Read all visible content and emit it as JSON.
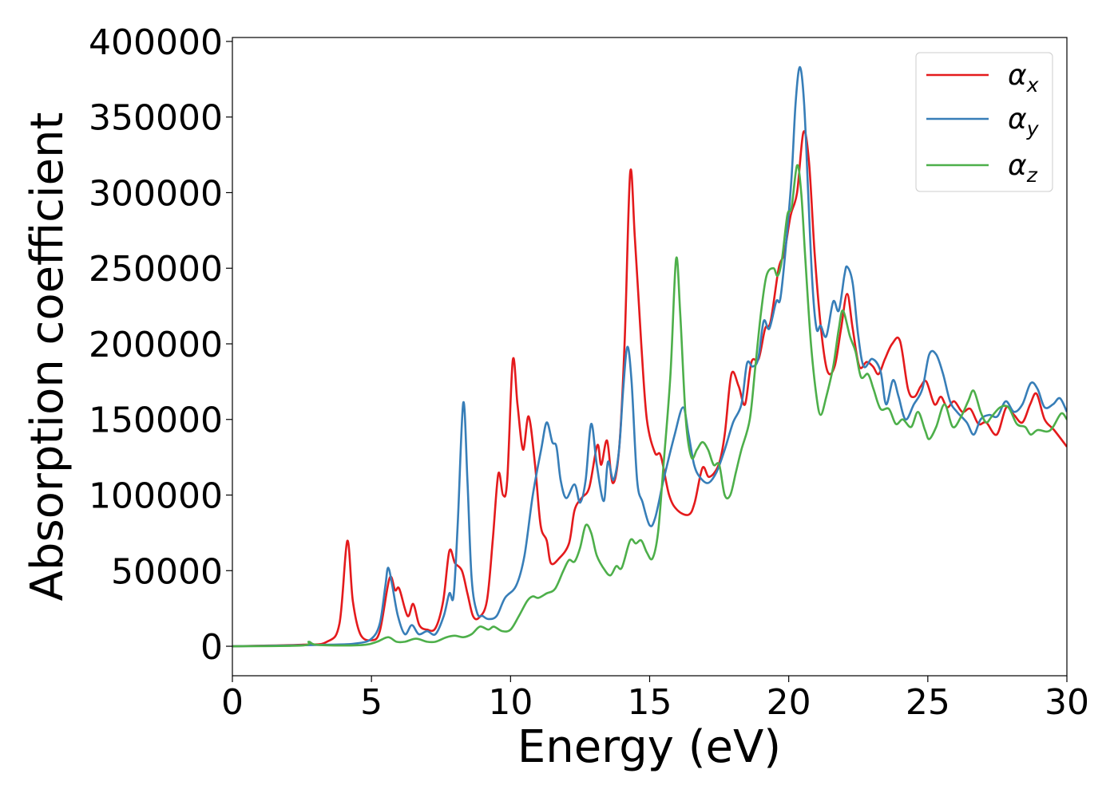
{
  "chart_data": {
    "type": "line",
    "title": "",
    "xlabel": "Energy (eV)",
    "ylabel": "Absorption coefficient",
    "xlim": [
      0,
      30
    ],
    "ylim": [
      -19500,
      402600
    ],
    "xticks": [
      0,
      5,
      10,
      15,
      20,
      25,
      30
    ],
    "xtick_labels": [
      "0",
      "5",
      "10",
      "15",
      "20",
      "25",
      "30"
    ],
    "yticks": [
      0,
      50000,
      100000,
      150000,
      200000,
      250000,
      300000,
      350000,
      400000
    ],
    "ytick_labels": [
      "0",
      "50000",
      "100000",
      "150000",
      "200000",
      "250000",
      "300000",
      "350000",
      "400000"
    ],
    "grid": false,
    "legend_position": "top-right",
    "series": [
      {
        "name": "αx",
        "base": "α",
        "sub": "x",
        "color": "#e41a1c",
        "x": [
          0,
          2.55,
          3.4,
          3.85,
          4.13,
          4.33,
          4.6,
          5.0,
          5.3,
          5.65,
          5.85,
          6.0,
          6.3,
          6.5,
          6.72,
          7.0,
          7.3,
          7.58,
          7.8,
          8.0,
          8.25,
          8.45,
          8.65,
          8.87,
          9.15,
          9.36,
          9.56,
          9.73,
          9.88,
          10.08,
          10.25,
          10.45,
          10.65,
          10.88,
          11.08,
          11.3,
          11.45,
          11.74,
          12.1,
          12.3,
          12.55,
          12.83,
          13.12,
          13.26,
          13.47,
          13.67,
          13.9,
          14.1,
          14.3,
          14.47,
          14.7,
          14.9,
          15.19,
          15.4,
          15.7,
          16.0,
          16.4,
          16.62,
          16.9,
          17.14,
          17.48,
          17.7,
          17.94,
          18.2,
          18.43,
          18.66,
          18.92,
          19.15,
          19.35,
          19.64,
          19.84,
          20.07,
          20.3,
          20.53,
          20.73,
          20.93,
          21.16,
          21.39,
          21.65,
          21.88,
          22.1,
          22.3,
          22.54,
          22.8,
          23.03,
          23.23,
          23.46,
          23.72,
          24.0,
          24.29,
          24.52,
          24.75,
          24.95,
          25.24,
          25.47,
          25.7,
          25.95,
          26.24,
          26.53,
          26.82,
          27.1,
          27.48,
          27.82,
          28.1,
          28.4,
          28.68,
          28.91,
          29.2,
          29.54,
          30
        ],
        "y": [
          0,
          1000,
          3000,
          15000,
          69700,
          30000,
          8000,
          4000,
          10000,
          45000,
          37000,
          38000,
          20000,
          28000,
          14000,
          11000,
          12000,
          30000,
          63000,
          55000,
          50000,
          35000,
          20000,
          19000,
          30000,
          70000,
          114000,
          100000,
          110000,
          189000,
          160000,
          130000,
          152000,
          120000,
          80000,
          70000,
          55000,
          58000,
          68000,
          90000,
          98000,
          105000,
          133000,
          120000,
          136000,
          108000,
          130000,
          200000,
          313000,
          270000,
          200000,
          150000,
          128000,
          126000,
          100000,
          90000,
          87000,
          95000,
          118000,
          112000,
          120000,
          140000,
          180000,
          172000,
          160000,
          188000,
          190000,
          210000,
          215000,
          250000,
          260000,
          285000,
          300000,
          340000,
          320000,
          260000,
          210000,
          182000,
          185000,
          210000,
          233000,
          210000,
          185000,
          188000,
          185000,
          180000,
          190000,
          200000,
          202000,
          170000,
          165000,
          172000,
          175000,
          160000,
          165000,
          158000,
          162000,
          155000,
          157000,
          147000,
          148000,
          140000,
          158000,
          153000,
          148000,
          160000,
          167000,
          150000,
          143000,
          132000
        ]
      },
      {
        "name": "αy",
        "base": "α",
        "sub": "y",
        "color": "#377eb8",
        "x": [
          0,
          3.5,
          4.5,
          5.0,
          5.3,
          5.5,
          5.6,
          5.75,
          5.95,
          6.2,
          6.45,
          6.7,
          7.0,
          7.3,
          7.6,
          7.8,
          7.95,
          8.1,
          8.3,
          8.45,
          8.6,
          8.8,
          9.0,
          9.2,
          9.5,
          9.8,
          10.2,
          10.5,
          10.8,
          11.1,
          11.3,
          11.5,
          11.65,
          11.8,
          12.0,
          12.3,
          12.5,
          12.7,
          12.9,
          13.1,
          13.35,
          13.5,
          13.7,
          13.9,
          14.05,
          14.2,
          14.35,
          14.55,
          14.75,
          15.0,
          15.2,
          15.5,
          15.9,
          16.2,
          16.4,
          16.6,
          16.8,
          17.1,
          17.4,
          17.7,
          18.0,
          18.3,
          18.5,
          18.7,
          18.9,
          19.1,
          19.3,
          19.55,
          19.7,
          19.9,
          20.1,
          20.25,
          20.4,
          20.55,
          20.7,
          20.85,
          21.0,
          21.15,
          21.35,
          21.6,
          21.8,
          22.0,
          22.1,
          22.3,
          22.5,
          22.7,
          23.0,
          23.3,
          23.5,
          23.75,
          23.95,
          24.2,
          24.5,
          24.8,
          25.05,
          25.3,
          25.55,
          25.8,
          26.05,
          26.4,
          26.65,
          26.9,
          27.2,
          27.5,
          27.8,
          28.1,
          28.4,
          28.7,
          28.95,
          29.2,
          29.5,
          29.75,
          30
        ],
        "y": [
          0,
          1000,
          2000,
          5000,
          15000,
          40000,
          52000,
          40000,
          20000,
          8000,
          14000,
          8000,
          10000,
          8000,
          20000,
          35000,
          33000,
          80000,
          161000,
          110000,
          45000,
          22000,
          20000,
          18000,
          20000,
          32000,
          40000,
          60000,
          100000,
          130000,
          148000,
          135000,
          132000,
          110000,
          98000,
          107000,
          95000,
          110000,
          147000,
          120000,
          96000,
          122000,
          110000,
          130000,
          170000,
          198000,
          175000,
          110000,
          95000,
          80000,
          85000,
          110000,
          140000,
          158000,
          140000,
          120000,
          112000,
          108000,
          115000,
          130000,
          148000,
          160000,
          187000,
          185000,
          190000,
          215000,
          210000,
          228000,
          230000,
          265000,
          310000,
          360000,
          383000,
          360000,
          300000,
          240000,
          210000,
          212000,
          205000,
          228000,
          222000,
          245000,
          251000,
          240000,
          205000,
          185000,
          190000,
          182000,
          160000,
          176000,
          165000,
          150000,
          160000,
          170000,
          193000,
          193000,
          180000,
          162000,
          155000,
          148000,
          140000,
          150000,
          153000,
          152000,
          162000,
          155000,
          160000,
          174000,
          170000,
          158000,
          160000,
          164000,
          155000
        ]
      },
      {
        "name": "αz",
        "base": "α",
        "sub": "z",
        "color": "#4daf4a",
        "x": [
          0,
          2.5,
          2.75,
          3.0,
          4.0,
          4.8,
          5.2,
          5.6,
          5.9,
          6.2,
          6.6,
          7.0,
          7.3,
          7.7,
          8.0,
          8.3,
          8.6,
          8.9,
          9.2,
          9.4,
          9.7,
          10.0,
          10.3,
          10.6,
          10.8,
          11.0,
          11.3,
          11.6,
          11.9,
          12.1,
          12.3,
          12.5,
          12.7,
          12.9,
          13.1,
          13.4,
          13.6,
          13.8,
          14.0,
          14.3,
          14.5,
          14.7,
          14.9,
          15.1,
          15.3,
          15.5,
          15.75,
          15.95,
          16.1,
          16.3,
          16.5,
          16.7,
          16.9,
          17.1,
          17.3,
          17.5,
          17.7,
          17.9,
          18.1,
          18.3,
          18.6,
          18.8,
          19.0,
          19.2,
          19.45,
          19.6,
          19.75,
          19.95,
          20.1,
          20.3,
          20.45,
          20.6,
          20.8,
          21.0,
          21.15,
          21.35,
          21.6,
          21.8,
          21.95,
          22.2,
          22.4,
          22.6,
          22.85,
          23.05,
          23.3,
          23.6,
          23.85,
          24.1,
          24.4,
          24.65,
          24.9,
          25.05,
          25.3,
          25.6,
          25.9,
          26.2,
          26.45,
          26.65,
          26.9,
          27.1,
          27.3,
          27.6,
          27.9,
          28.2,
          28.5,
          28.7,
          28.95,
          29.3,
          29.5,
          29.8,
          30
        ],
        "y": [
          0,
          500,
          3000,
          1000,
          500,
          1000,
          3000,
          6000,
          3000,
          3000,
          5000,
          3000,
          3000,
          6000,
          7000,
          6000,
          8000,
          13000,
          11000,
          13000,
          10000,
          11000,
          20000,
          30000,
          33000,
          32000,
          35000,
          38000,
          50000,
          57000,
          56000,
          65000,
          80000,
          75000,
          60000,
          50000,
          47000,
          53000,
          52000,
          70000,
          68000,
          70000,
          62000,
          58000,
          75000,
          120000,
          180000,
          256000,
          220000,
          150000,
          125000,
          130000,
          135000,
          130000,
          120000,
          120000,
          100000,
          100000,
          115000,
          130000,
          150000,
          185000,
          220000,
          245000,
          250000,
          245000,
          255000,
          285000,
          290000,
          318000,
          300000,
          255000,
          200000,
          165000,
          153000,
          165000,
          185000,
          210000,
          222000,
          205000,
          195000,
          178000,
          180000,
          170000,
          157000,
          157000,
          147000,
          150000,
          145000,
          155000,
          143000,
          137000,
          145000,
          160000,
          145000,
          152000,
          162000,
          169000,
          155000,
          148000,
          152000,
          158000,
          158000,
          147000,
          145000,
          140000,
          143000,
          142000,
          145000,
          154000,
          150000
        ]
      }
    ]
  }
}
